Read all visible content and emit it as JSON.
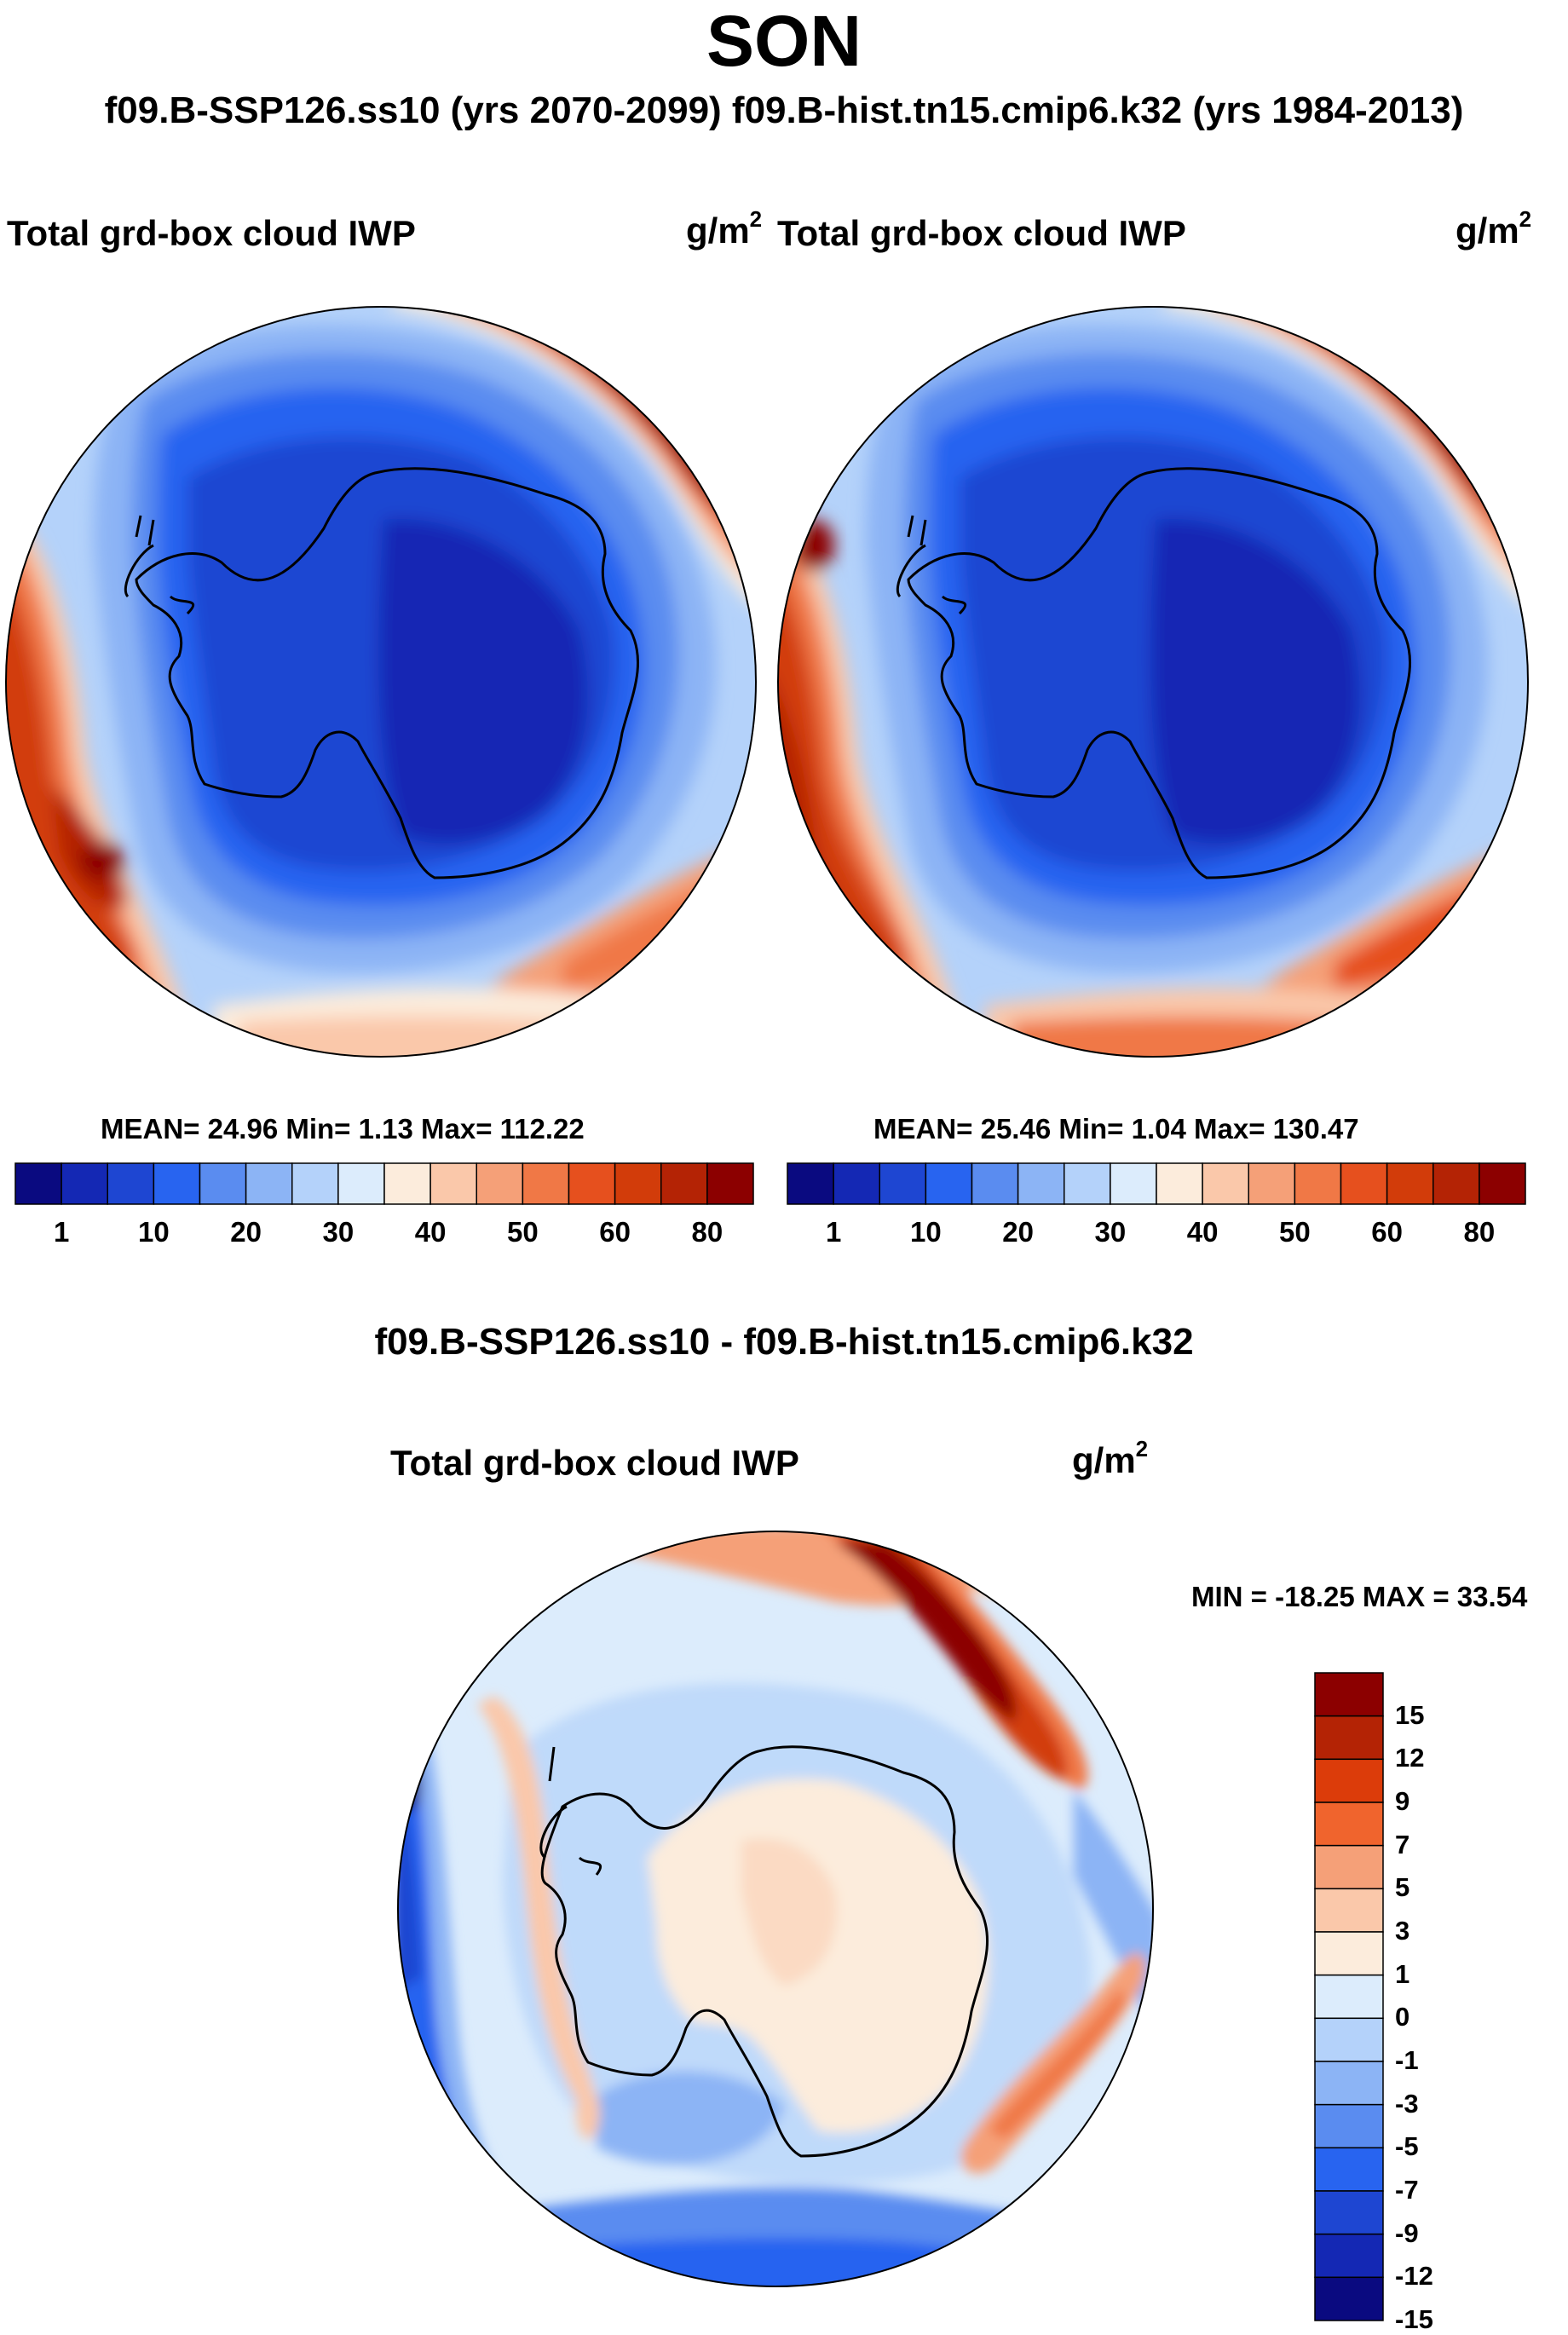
{
  "season": "SON",
  "subtitle": "f09.B-SSP126.ss10 (yrs 2070-2099)  f09.B-hist.tn15.cmip6.k32 (yrs 1984-2013)",
  "panels": [
    {
      "variable": "Total grd-box cloud IWP",
      "units_base": "g/m",
      "units_exp": "2",
      "stats": "MEAN=  24.96  Min=   1.13  Max= 112.22",
      "mean": 24.96,
      "min": 1.13,
      "max": 112.22
    },
    {
      "variable": "Total grd-box cloud IWP",
      "units_base": "g/m",
      "units_exp": "2",
      "stats": "MEAN=  25.46  Min=   1.04  Max= 130.47",
      "mean": 25.46,
      "min": 1.04,
      "max": 130.47
    }
  ],
  "diff": {
    "title": "f09.B-SSP126.ss10 - f09.B-hist.tn15.cmip6.k32",
    "variable": "Total grd-box cloud IWP",
    "units_base": "g/m",
    "units_exp": "2",
    "minmax": "MIN = -18.25 MAX =  33.54",
    "min": -18.25,
    "max": 33.54
  },
  "colorbars": {
    "abs_colors": [
      "#0a0a80",
      "#1428b4",
      "#1e46d2",
      "#2864f0",
      "#5a8cf0",
      "#8cb4f5",
      "#b4d2fa",
      "#dcecfc",
      "#fcecdc",
      "#fac8aa",
      "#f5a078",
      "#f07846",
      "#e6501e",
      "#d23c0a",
      "#b42305",
      "#8c0000"
    ],
    "abs_ticks": [
      "1",
      "10",
      "20",
      "30",
      "40",
      "50",
      "60",
      "80"
    ],
    "diff_colors_top_to_bottom": [
      "#8c0000",
      "#b42305",
      "#dc3c0a",
      "#f0642d",
      "#f5a078",
      "#fac8aa",
      "#fcecdc",
      "#dcecfc",
      "#b4d2fa",
      "#8cb4f5",
      "#5a8cf0",
      "#2864f0",
      "#1e46d2",
      "#1428b4",
      "#0a0a80"
    ],
    "diff_ticks": [
      "15",
      "12",
      "9",
      "7",
      "5",
      "3",
      "1",
      "0",
      "-1",
      "-3",
      "-5",
      "-7",
      "-9",
      "-12",
      "-15"
    ]
  },
  "chart_data": [
    {
      "type": "heatmap",
      "projection": "south polar stereographic",
      "title": "Total grd-box cloud IWP",
      "case": "f09.B-SSP126.ss10 (yrs 2070-2099)",
      "units": "g/m2",
      "levels": [
        1,
        5,
        10,
        15,
        20,
        25,
        30,
        35,
        40,
        45,
        50,
        55,
        60,
        70,
        80
      ],
      "mean": 24.96,
      "min": 1.13,
      "max": 112.22
    },
    {
      "type": "heatmap",
      "projection": "south polar stereographic",
      "title": "Total grd-box cloud IWP",
      "case": "f09.B-hist.tn15.cmip6.k32 (yrs 1984-2013)",
      "units": "g/m2",
      "levels": [
        1,
        5,
        10,
        15,
        20,
        25,
        30,
        35,
        40,
        45,
        50,
        55,
        60,
        70,
        80
      ],
      "mean": 25.46,
      "min": 1.04,
      "max": 130.47
    },
    {
      "type": "heatmap",
      "projection": "south polar stereographic",
      "title": "f09.B-SSP126.ss10 - f09.B-hist.tn15.cmip6.k32",
      "units": "g/m2",
      "levels": [
        -15,
        -12,
        -9,
        -7,
        -5,
        -3,
        -1,
        0,
        1,
        3,
        5,
        7,
        9,
        12,
        15
      ],
      "min": -18.25,
      "max": 33.54
    }
  ]
}
